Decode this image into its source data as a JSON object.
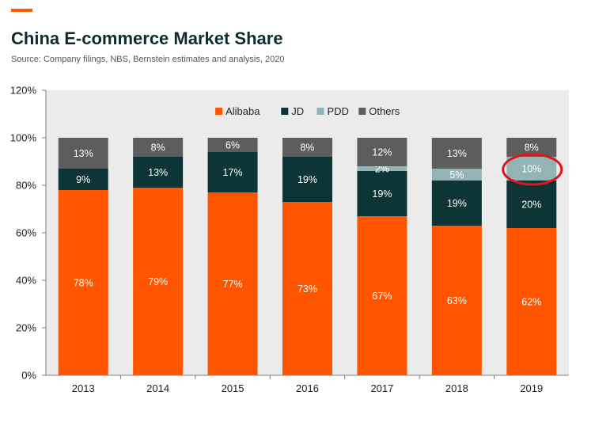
{
  "header": {
    "title": "China E-commerce Market Share",
    "subtitle": "Source: Company filings, NBS, Bernstein estimates and analysis, 2020"
  },
  "colors": {
    "accent": "#ff5a00",
    "plot_background": "#ebebeb",
    "highlight_circle": "#e0151b"
  },
  "chart_data": {
    "type": "bar",
    "stacked": true,
    "title": "China E-commerce Market Share",
    "categories": [
      "2013",
      "2014",
      "2015",
      "2016",
      "2017",
      "2018",
      "2019"
    ],
    "series": [
      {
        "name": "Alibaba",
        "color": "#ff5500",
        "label_color": "#ffffff",
        "values": [
          78,
          79,
          77,
          73,
          67,
          63,
          62
        ],
        "labels": [
          "78%",
          "79%",
          "77%",
          "73%",
          "67%",
          "63%",
          "62%"
        ]
      },
      {
        "name": "JD",
        "color": "#0d3535",
        "label_color": "#ffffff",
        "values": [
          9,
          13,
          17,
          19,
          19,
          19,
          20
        ],
        "labels": [
          "9%",
          "13%",
          "17%",
          "19%",
          "19%",
          "19%",
          "20%"
        ]
      },
      {
        "name": "PDD",
        "color": "#93b4b4",
        "label_color": "#ffffff",
        "values": [
          0,
          0,
          0,
          0,
          2,
          5,
          10
        ],
        "labels": [
          "",
          "",
          "",
          "",
          "2%",
          "5%",
          "10%"
        ]
      },
      {
        "name": "Others",
        "color": "#5d5d5d",
        "label_color": "#ffffff",
        "values": [
          13,
          8,
          6,
          8,
          12,
          13,
          8
        ],
        "labels": [
          "13%",
          "8%",
          "6%",
          "8%",
          "12%",
          "13%",
          "8%"
        ]
      }
    ],
    "ylim": [
      0,
      120
    ],
    "yticks": [
      "0%",
      "20%",
      "40%",
      "60%",
      "80%",
      "100%",
      "120%"
    ],
    "ytick_values": [
      0,
      20,
      40,
      60,
      80,
      100,
      120
    ],
    "legend_position": "top-center",
    "grid": false,
    "highlight": {
      "category": "2019",
      "series": "PDD"
    }
  }
}
